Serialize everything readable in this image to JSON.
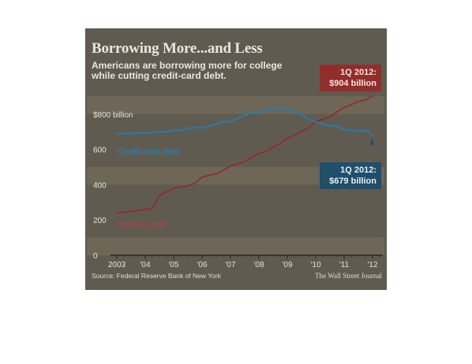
{
  "header": {
    "title": "Borrowing More...and Less",
    "subtitle": "Americans are borrowing more for college while cutting credit-card debt."
  },
  "footer": {
    "source": "Source: Federal Reserve Bank of New York",
    "credit": "The Wall Street Journal"
  },
  "callouts": {
    "student": {
      "period": "1Q 2012:",
      "value": "$904 billion"
    },
    "credit": {
      "period": "1Q 2012:",
      "value": "$679 billion"
    }
  },
  "colors": {
    "background": "#605b51",
    "band": "#6e6657",
    "student": "#912d2b",
    "credit": "#1a82bd",
    "credit_callout": "#1f4f6b"
  },
  "chart_data": {
    "type": "line",
    "title": "Borrowing More...and Less",
    "subtitle": "Americans are borrowing more for college while cutting credit-card debt.",
    "xlabel": "",
    "ylabel": "",
    "xlim": [
      2003.0,
      2012.25
    ],
    "ylim": [
      0,
      1000
    ],
    "y_ticks": [
      0,
      200,
      400,
      600,
      800
    ],
    "y_tick_labels": [
      "0",
      "200",
      "400",
      "600",
      "$800 billion"
    ],
    "x_ticks": [
      2003,
      2004,
      2005,
      2006,
      2007,
      2008,
      2009,
      2010,
      2011,
      2012
    ],
    "x_tick_labels": [
      "2003",
      "'04",
      "'05",
      "'06",
      "'07",
      "'08",
      "'09",
      "'10",
      "'11",
      "'12"
    ],
    "series": [
      {
        "name": "Student debt",
        "x": [
          2003.0,
          2003.25,
          2003.5,
          2003.75,
          2004.0,
          2004.25,
          2004.5,
          2004.75,
          2005.0,
          2005.25,
          2005.5,
          2005.75,
          2006.0,
          2006.25,
          2006.5,
          2006.75,
          2007.0,
          2007.25,
          2007.5,
          2007.75,
          2008.0,
          2008.25,
          2008.5,
          2008.75,
          2009.0,
          2009.25,
          2009.5,
          2009.75,
          2010.0,
          2010.25,
          2010.5,
          2010.75,
          2011.0,
          2011.25,
          2011.5,
          2011.75,
          2012.0
        ],
        "values": [
          240,
          243,
          248,
          253,
          260,
          264,
          340,
          360,
          378,
          388,
          392,
          410,
          443,
          453,
          462,
          482,
          506,
          518,
          532,
          555,
          577,
          590,
          612,
          635,
          663,
          681,
          700,
          722,
          755,
          770,
          785,
          812,
          838,
          853,
          872,
          879,
          904
        ]
      },
      {
        "name": "Credit-card debt",
        "x": [
          2003.0,
          2003.25,
          2003.5,
          2003.75,
          2004.0,
          2004.25,
          2004.5,
          2004.75,
          2005.0,
          2005.25,
          2005.5,
          2005.75,
          2006.0,
          2006.25,
          2006.5,
          2006.75,
          2007.0,
          2007.25,
          2007.5,
          2007.75,
          2008.0,
          2008.25,
          2008.5,
          2008.75,
          2009.0,
          2009.25,
          2009.5,
          2009.75,
          2010.0,
          2010.25,
          2010.5,
          2010.75,
          2011.0,
          2011.25,
          2011.5,
          2011.75,
          2012.0
        ],
        "values": [
          688,
          690,
          690,
          693,
          693,
          696,
          701,
          699,
          709,
          707,
          719,
          725,
          720,
          733,
          742,
          757,
          756,
          776,
          793,
          811,
          810,
          822,
          831,
          839,
          826,
          809,
          796,
          769,
          756,
          744,
          734,
          733,
          711,
          710,
          702,
          708,
          679
        ]
      }
    ]
  }
}
